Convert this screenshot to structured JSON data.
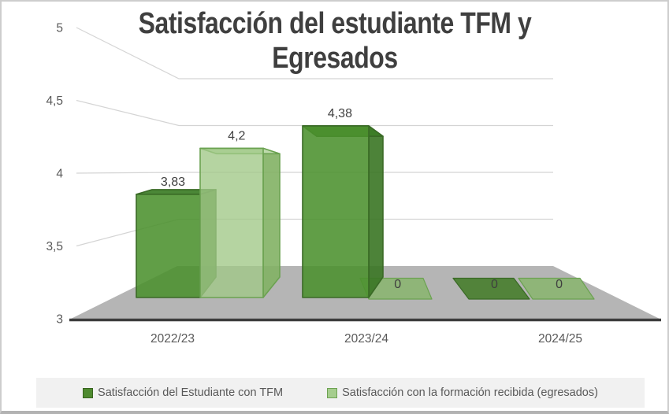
{
  "title": "Satisfacción del estudiante TFM y Egresados",
  "chart_data": {
    "type": "bar",
    "subtype": "3d-clustered-column",
    "title": "Satisfacción del estudiante TFM y Egresados",
    "categories": [
      "2022/23",
      "2023/24",
      "2024/25"
    ],
    "series": [
      {
        "name": "Satisfacción del Estudiante con TFM",
        "values": [
          3.83,
          4.38,
          0
        ],
        "labels": [
          "3,83",
          "4,38",
          "0"
        ]
      },
      {
        "name": "Satisfacción con la formación recibida (egresados)",
        "values": [
          4.2,
          0,
          0
        ],
        "labels": [
          "4,2",
          "0",
          "0"
        ]
      }
    ],
    "ylim": [
      3,
      5
    ],
    "yticks": [
      {
        "value": 3,
        "label": "3"
      },
      {
        "value": 3.5,
        "label": "3,5"
      },
      {
        "value": 4,
        "label": "4"
      },
      {
        "value": 4.5,
        "label": "4,5"
      },
      {
        "value": 5,
        "label": "5"
      }
    ],
    "grid": true,
    "legend_position": "bottom",
    "xlabel": "",
    "ylabel": ""
  },
  "colors": {
    "floor": "#b5b5b5",
    "axis_line": "#3d3d3d",
    "gridline": "#d4d4d4",
    "title_text": "#3f3f3f",
    "tick_text": "#595959",
    "value_label_text": "#3f3f3f",
    "legend_background": "#f1f1f1",
    "series": [
      {
        "front": "rgba(75,145,45,0.88)",
        "top": "rgba(60,125,38,0.92)",
        "side": "rgba(58,118,36,0.90)",
        "edge": "#3a6a26",
        "flat": "rgba(60,120,30,0.82)",
        "legend_swatch": "#4e8a2f",
        "legend_swatch_border": "#38641f"
      },
      {
        "front": "rgba(160,200,135,0.78)",
        "top": "rgba(195,222,178,0.90)",
        "side": "rgba(130,177,100,0.90)",
        "edge": "#6ba251",
        "flat": "rgba(125,182,92,0.68)",
        "legend_swatch": "#a5cd8d",
        "legend_swatch_border": "#6da252"
      }
    ]
  }
}
